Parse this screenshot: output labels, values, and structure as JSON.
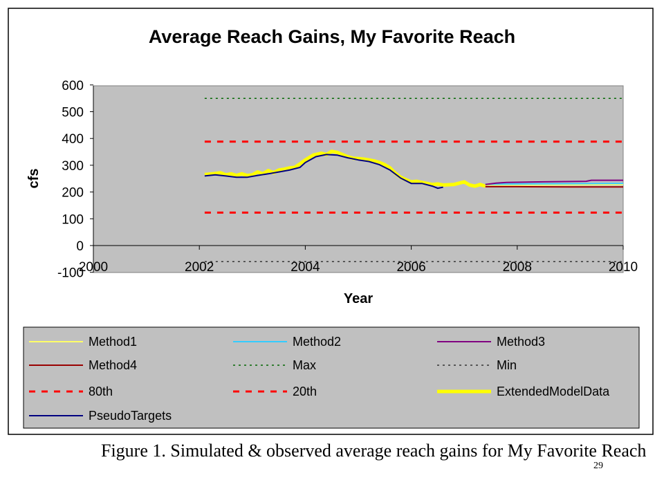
{
  "chart_data": {
    "type": "line",
    "title": "Average Reach Gains, My Favorite Reach",
    "xlabel": "Year",
    "ylabel": "cfs",
    "xlim": [
      2000,
      2010
    ],
    "ylim": [
      -100,
      600
    ],
    "x_ticks": [
      "2000",
      "2002",
      "2004",
      "2006",
      "2008",
      "2010"
    ],
    "y_ticks": [
      "600",
      "500",
      "400",
      "300",
      "200",
      "100",
      "0",
      "-100"
    ],
    "grid": false,
    "background": "#c0c0c0",
    "legend_position": "bottom",
    "series": [
      {
        "name": "Method1",
        "color": "#ffff66",
        "style": "solid",
        "points": [
          [
            2007.4,
            226
          ],
          [
            2008,
            226
          ],
          [
            2009,
            227
          ],
          [
            2010,
            228
          ]
        ]
      },
      {
        "name": "Method2",
        "color": "#33ccff",
        "style": "solid",
        "points": [
          [
            2007.4,
            229
          ],
          [
            2008,
            230
          ],
          [
            2009,
            231
          ],
          [
            2010,
            232
          ]
        ]
      },
      {
        "name": "Method3",
        "color": "#800080",
        "style": "solid",
        "points": [
          [
            2007.4,
            228
          ],
          [
            2007.6,
            233
          ],
          [
            2007.8,
            236
          ],
          [
            2008.5,
            238
          ],
          [
            2009.3,
            240
          ],
          [
            2009.4,
            244
          ],
          [
            2010,
            244
          ]
        ]
      },
      {
        "name": "Method4",
        "color": "#990000",
        "style": "solid",
        "points": [
          [
            2007.4,
            220
          ],
          [
            2008,
            220
          ],
          [
            2009,
            219
          ],
          [
            2010,
            219
          ]
        ]
      },
      {
        "name": "Max",
        "color": "#006600",
        "style": "dotted",
        "points": [
          [
            2002.1,
            550
          ],
          [
            2010,
            550
          ]
        ]
      },
      {
        "name": "Min",
        "color": "#333333",
        "style": "dotted",
        "points": [
          [
            2002.1,
            -60
          ],
          [
            2010,
            -60
          ]
        ]
      },
      {
        "name": "80th",
        "color": "#ff0000",
        "style": "dashed",
        "points": [
          [
            2002.1,
            388
          ],
          [
            2010,
            388
          ]
        ]
      },
      {
        "name": "20th",
        "color": "#ff0000",
        "style": "dashed",
        "points": [
          [
            2002.1,
            123
          ],
          [
            2010,
            123
          ]
        ]
      },
      {
        "name": "ExtendedModelData",
        "color": "#ffff00",
        "style": "thick",
        "points": [
          [
            2002.1,
            265
          ],
          [
            2002.25,
            268
          ],
          [
            2002.4,
            272
          ],
          [
            2002.5,
            264
          ],
          [
            2002.6,
            268
          ],
          [
            2002.7,
            262
          ],
          [
            2002.8,
            268
          ],
          [
            2002.9,
            262
          ],
          [
            2003.0,
            264
          ],
          [
            2003.1,
            275
          ],
          [
            2003.2,
            268
          ],
          [
            2003.3,
            280
          ],
          [
            2003.4,
            272
          ],
          [
            2003.5,
            282
          ],
          [
            2003.6,
            285
          ],
          [
            2003.7,
            290
          ],
          [
            2003.8,
            292
          ],
          [
            2003.9,
            305
          ],
          [
            2004.0,
            320
          ],
          [
            2004.15,
            338
          ],
          [
            2004.3,
            345
          ],
          [
            2004.4,
            340
          ],
          [
            2004.5,
            352
          ],
          [
            2004.6,
            348
          ],
          [
            2004.7,
            340
          ],
          [
            2004.8,
            332
          ],
          [
            2004.9,
            326
          ],
          [
            2005.0,
            325
          ],
          [
            2005.1,
            323
          ],
          [
            2005.2,
            320
          ],
          [
            2005.3,
            316
          ],
          [
            2005.4,
            310
          ],
          [
            2005.5,
            302
          ],
          [
            2005.6,
            290
          ],
          [
            2005.7,
            270
          ],
          [
            2005.8,
            255
          ],
          [
            2005.9,
            246
          ],
          [
            2006.0,
            238
          ],
          [
            2006.1,
            240
          ],
          [
            2006.2,
            236
          ],
          [
            2006.3,
            232
          ],
          [
            2006.4,
            228
          ],
          [
            2006.5,
            230
          ],
          [
            2006.6,
            226
          ],
          [
            2006.8,
            228
          ],
          [
            2007.0,
            238
          ],
          [
            2007.1,
            226
          ],
          [
            2007.2,
            222
          ],
          [
            2007.3,
            228
          ],
          [
            2007.4,
            222
          ]
        ]
      },
      {
        "name": "PseudoTargets",
        "color": "#000080",
        "style": "solid",
        "points": [
          [
            2002.1,
            260
          ],
          [
            2002.3,
            264
          ],
          [
            2002.5,
            260
          ],
          [
            2002.7,
            255
          ],
          [
            2002.9,
            255
          ],
          [
            2003.1,
            262
          ],
          [
            2003.3,
            268
          ],
          [
            2003.5,
            275
          ],
          [
            2003.7,
            282
          ],
          [
            2003.9,
            292
          ],
          [
            2004.0,
            310
          ],
          [
            2004.2,
            332
          ],
          [
            2004.4,
            340
          ],
          [
            2004.6,
            338
          ],
          [
            2004.8,
            328
          ],
          [
            2005.0,
            320
          ],
          [
            2005.2,
            314
          ],
          [
            2005.4,
            302
          ],
          [
            2005.6,
            282
          ],
          [
            2005.8,
            252
          ],
          [
            2006.0,
            232
          ],
          [
            2006.2,
            232
          ],
          [
            2006.4,
            222
          ],
          [
            2006.5,
            214
          ],
          [
            2006.6,
            218
          ]
        ]
      }
    ]
  },
  "caption": "Figure 1.  Simulated & observed average reach gains for My Favorite Reach",
  "page_number": "29"
}
